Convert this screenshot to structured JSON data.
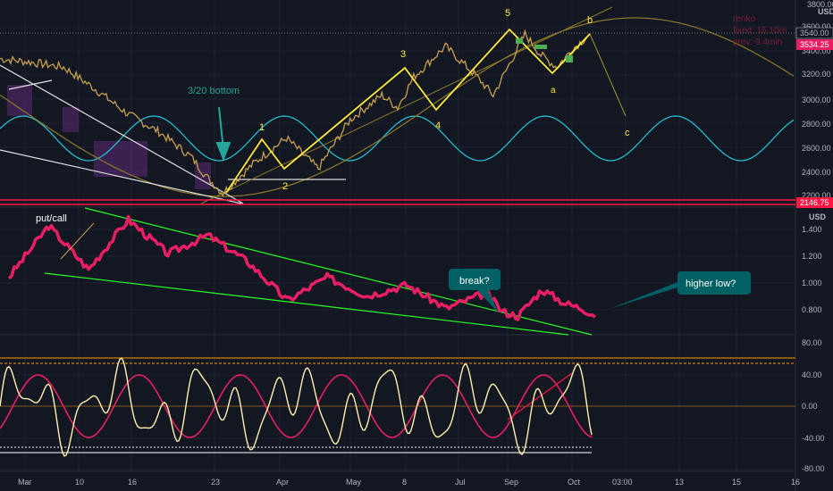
{
  "chart_data": [
    {
      "type": "line",
      "name": "price-panel",
      "yaxis": {
        "unit": "USD",
        "ticks": [
          "3800.00",
          "3600.00",
          "3400.00",
          "3200.00",
          "3000.00",
          "2800.00",
          "2600.00",
          "2400.00",
          "2200.00"
        ],
        "ylim": [
          2150,
          3830
        ]
      },
      "price_labels": {
        "last": "3540.00",
        "current": "3534.25",
        "low": "2146.75"
      },
      "series": [
        {
          "values_x": [
            0,
            0.04,
            0.08,
            0.12,
            0.16,
            0.2,
            0.24,
            0.26,
            0.28,
            0.32,
            0.36,
            0.4,
            0.44,
            0.48,
            0.5,
            0.52,
            0.56,
            0.6,
            0.62,
            0.64,
            0.66,
            0.68,
            0.7,
            0.72,
            0.74
          ],
          "values_y": [
            3350,
            3320,
            3280,
            3100,
            2900,
            2750,
            2550,
            2380,
            2250,
            2500,
            2700,
            2450,
            2850,
            3050,
            2950,
            3200,
            3450,
            3200,
            3050,
            3300,
            3550,
            3380,
            3280,
            3430,
            3540
          ]
        }
      ],
      "waves": [
        "1",
        "2",
        "3",
        "4",
        "5",
        "a",
        "b",
        "c"
      ],
      "annotations": [
        "3/20 bottom"
      ],
      "info": {
        "line1": "renko",
        "line2": "fixed: 15.10m",
        "line3": "prev: 9.4min"
      }
    },
    {
      "type": "line",
      "name": "put-call-panel",
      "title": "put/call",
      "yaxis": {
        "unit": "USD",
        "ticks": [
          "1.400",
          "1.200",
          "1.000",
          "0.800"
        ],
        "ylim": [
          0.68,
          1.5
        ]
      },
      "x": [
        0,
        0.05,
        0.1,
        0.15,
        0.2,
        0.25,
        0.3,
        0.35,
        0.4,
        0.45,
        0.5,
        0.55,
        0.6,
        0.62,
        0.64,
        0.67,
        0.7,
        0.72,
        0.74
      ],
      "values": [
        1.05,
        1.38,
        1.1,
        1.42,
        1.2,
        1.32,
        1.15,
        0.9,
        1.05,
        0.93,
        1.0,
        0.85,
        0.95,
        0.83,
        0.8,
        0.97,
        0.88,
        0.85,
        0.8
      ],
      "annotations": [
        "break?",
        "higher low?"
      ]
    },
    {
      "type": "line",
      "name": "oscillator-panel",
      "yaxis": {
        "ticks": [
          "80.00",
          "40.00",
          "0.00",
          "-40.00",
          "-80.00"
        ],
        "ylim": [
          -80,
          80
        ]
      }
    }
  ],
  "xaxis": {
    "ticks": [
      "Mar",
      "10",
      "16",
      "23",
      "Apr",
      "May",
      "8",
      "Jul",
      "Sep",
      "Oct",
      "03:00",
      "13",
      "15",
      "16"
    ]
  },
  "colors": {
    "bg": "#131722",
    "pink": "#e91e63",
    "yellow": "#ffeb3b",
    "teal": "#26a69a",
    "green": "#4caf50",
    "white": "#ffffff",
    "red": "#ff1744"
  }
}
